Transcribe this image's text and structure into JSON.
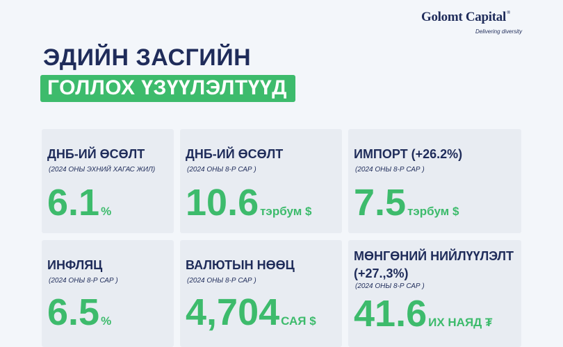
{
  "brand": {
    "name": "Golomt Capital",
    "registered": "®",
    "tagline": "Delivering diversity"
  },
  "title": {
    "line1": "ЭДИЙН ЗАСГИЙН",
    "line2": "ГОЛЛОХ ҮЗҮҮЛЭЛТҮҮД"
  },
  "accent_color": "#3dbb6c",
  "text_color": "#1f2c5a",
  "cards": [
    {
      "title": "ДНБ-ИЙ ӨСӨЛТ",
      "subtitle": "(2024 ОНЫ ЭХНИЙ ХАГАС ЖИЛ)",
      "value": "6.1",
      "unit": "%"
    },
    {
      "title": "ДНБ-ИЙ ӨСӨЛТ",
      "subtitle": "(2024 ОНЫ 8-Р САР )",
      "value": "10.6",
      "unit": "тэрбум $"
    },
    {
      "title": "ИМПОРТ (+26.2%)",
      "subtitle": "(2024 ОНЫ 8-Р САР )",
      "value": "7.5",
      "unit": "тэрбум $"
    },
    {
      "title": "ИНФЛЯЦ",
      "subtitle": "(2024 ОНЫ 8-Р САР )",
      "value": "6.5",
      "unit": "%"
    },
    {
      "title": "ВАЛЮТЫН НӨӨЦ",
      "subtitle": "(2024 ОНЫ 8-Р САР )",
      "value": "4,704",
      "unit": "САЯ $"
    },
    {
      "title": "МӨНГӨНИЙ НИЙЛҮҮЛЭЛТ (+27.,3%)",
      "subtitle": "(2024 ОНЫ 8-Р САР )",
      "value": "41.6",
      "unit": "ИХ НАЯД ₮"
    }
  ]
}
